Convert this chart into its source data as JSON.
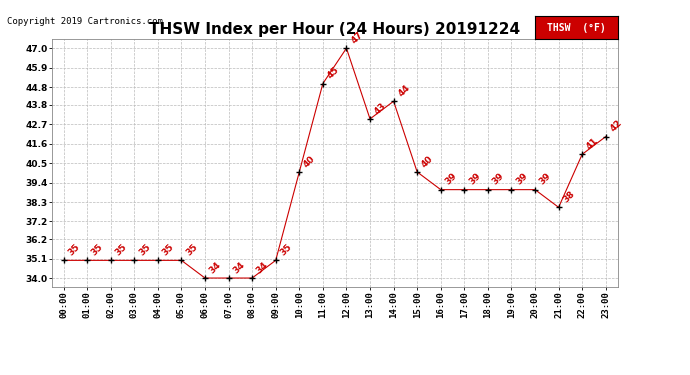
{
  "title": "THSW Index per Hour (24 Hours) 20191224",
  "copyright": "Copyright 2019 Cartronics.com",
  "legend_label": "THSW  (°F)",
  "hours": [
    "00:00",
    "01:00",
    "02:00",
    "03:00",
    "04:00",
    "05:00",
    "06:00",
    "07:00",
    "08:00",
    "09:00",
    "10:00",
    "11:00",
    "12:00",
    "13:00",
    "14:00",
    "15:00",
    "16:00",
    "17:00",
    "18:00",
    "19:00",
    "20:00",
    "21:00",
    "22:00",
    "23:00"
  ],
  "values": [
    35,
    35,
    35,
    35,
    35,
    35,
    34,
    34,
    34,
    35,
    40,
    45,
    47,
    43,
    44,
    40,
    39,
    39,
    39,
    39,
    39,
    38,
    41,
    42
  ],
  "ylim_min": 33.5,
  "ylim_max": 47.5,
  "yticks": [
    34.0,
    35.1,
    36.2,
    37.2,
    38.3,
    39.4,
    40.5,
    41.6,
    42.7,
    43.8,
    44.8,
    45.9,
    47.0
  ],
  "line_color": "#cc0000",
  "marker_color": "#000000",
  "label_color": "#cc0000",
  "grid_color": "#bbbbbb",
  "background_color": "#ffffff",
  "title_fontsize": 11,
  "copyright_fontsize": 6.5,
  "label_fontsize": 6.5,
  "tick_fontsize": 6.5,
  "legend_fontsize": 7
}
